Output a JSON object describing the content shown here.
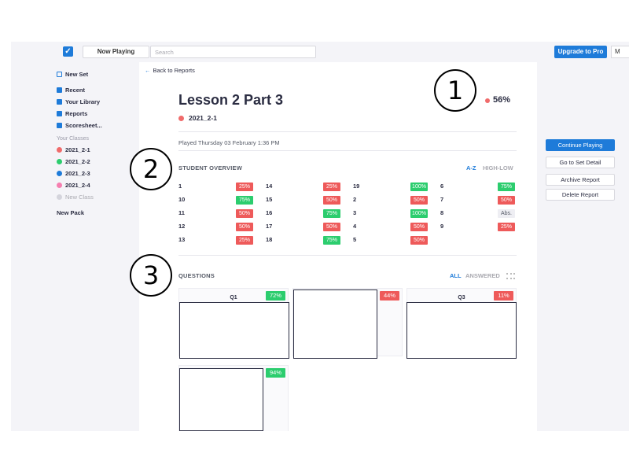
{
  "topbar": {
    "now_playing_label": "Now Playing",
    "search_placeholder": "Search",
    "upgrade_label": "Upgrade to Pro",
    "user_label": "M"
  },
  "sidebar": {
    "new_set": "New Set",
    "nav": [
      {
        "label": "Recent",
        "icon": "recent-icon"
      },
      {
        "label": "Your Library",
        "icon": "folder-icon"
      },
      {
        "label": "Reports",
        "icon": "reports-icon"
      },
      {
        "label": "Scoresheet...",
        "icon": "grid-icon"
      }
    ],
    "classes_heading": "Your Classes",
    "classes": [
      {
        "label": "2021_2-1",
        "color": "#f06b6b"
      },
      {
        "label": "2021_2-2",
        "color": "#2ccd6e"
      },
      {
        "label": "2021_2-3",
        "color": "#1e7bd9"
      },
      {
        "label": "2021_2-4",
        "color": "#f57fb0"
      }
    ],
    "new_class": "New Class",
    "new_pack": "New Pack"
  },
  "report": {
    "back_label": "Back to Reports",
    "title": "Lesson 2 Part 3",
    "class_tag": "2021_2-1",
    "class_color": "#f06b6b",
    "score": "56%",
    "played": "Played Thursday 03 February 1:36 PM",
    "student_overview_title": "STUDENT OVERVIEW",
    "sort_az": "A-Z",
    "sort_highlow": "HIGH-LOW",
    "students": [
      [
        {
          "name": "1",
          "score": "25%",
          "status": "red"
        },
        {
          "name": "14",
          "score": "25%",
          "status": "red"
        },
        {
          "name": "19",
          "score": "100%",
          "status": "green"
        },
        {
          "name": "6",
          "score": "75%",
          "status": "green"
        }
      ],
      [
        {
          "name": "10",
          "score": "75%",
          "status": "green"
        },
        {
          "name": "15",
          "score": "50%",
          "status": "red"
        },
        {
          "name": "2",
          "score": "50%",
          "status": "red"
        },
        {
          "name": "7",
          "score": "50%",
          "status": "red"
        }
      ],
      [
        {
          "name": "11",
          "score": "50%",
          "status": "red"
        },
        {
          "name": "16",
          "score": "75%",
          "status": "green"
        },
        {
          "name": "3",
          "score": "100%",
          "status": "green"
        },
        {
          "name": "8",
          "score": "Abs.",
          "status": "abs"
        }
      ],
      [
        {
          "name": "12",
          "score": "50%",
          "status": "red"
        },
        {
          "name": "17",
          "score": "50%",
          "status": "red"
        },
        {
          "name": "4",
          "score": "50%",
          "status": "red"
        },
        {
          "name": "9",
          "score": "25%",
          "status": "red"
        }
      ],
      [
        {
          "name": "13",
          "score": "25%",
          "status": "red"
        },
        {
          "name": "18",
          "score": "75%",
          "status": "green"
        },
        {
          "name": "5",
          "score": "50%",
          "status": "red"
        }
      ]
    ],
    "questions_title": "QUESTIONS",
    "filter_all": "ALL",
    "filter_answered": "ANSWERED",
    "questions": [
      {
        "label": "Q1",
        "score": "72%",
        "status": "green"
      },
      {
        "label": "",
        "score": "44%",
        "status": "red"
      },
      {
        "label": "Q3",
        "score": "11%",
        "status": "red"
      },
      {
        "label": "",
        "score": "94%",
        "status": "green"
      }
    ]
  },
  "actions": {
    "continue": "Continue Playing",
    "set_detail": "Go to Set Detail",
    "archive": "Archive Report",
    "delete": "Delete Report"
  },
  "callouts": [
    "1",
    "2",
    "3"
  ],
  "colors": {
    "accent": "#1e7bd9",
    "good": "#2ccd6e",
    "bad": "#ee5a5a"
  }
}
